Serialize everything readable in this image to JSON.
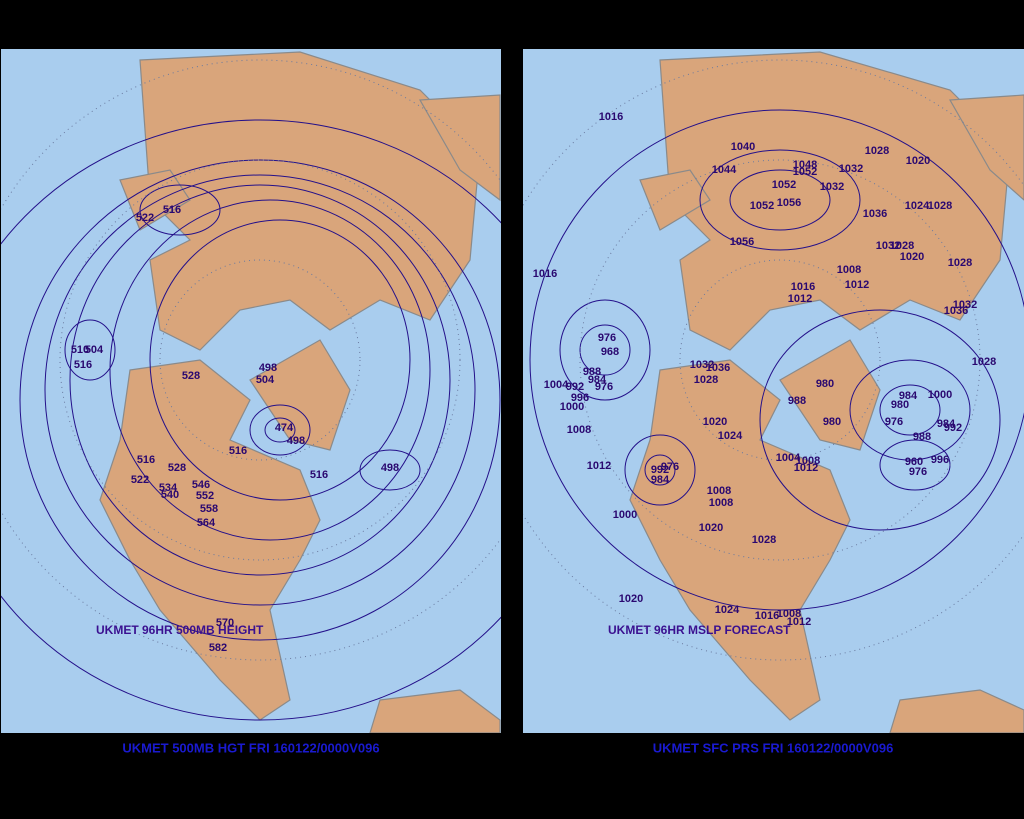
{
  "left_panel": {
    "caption": "UKMET 500MB HGT FRI 160122/0000V096",
    "map_title": "UKMET 96HR 500MB HEIGHT",
    "contour_labels": [
      516,
      522,
      510,
      504,
      516,
      528,
      498,
      504,
      474,
      498,
      516,
      516,
      522,
      528,
      534,
      540,
      546,
      552,
      558,
      564,
      516,
      498,
      570,
      582
    ]
  },
  "right_panel": {
    "caption": "UKMET SFC PRS FRI 160122/0000V096",
    "map_title": "UKMET 96HR MSLP FORECAST",
    "contour_labels": [
      1016,
      1040,
      1048,
      1052,
      1032,
      1028,
      1020,
      1044,
      1052,
      1032,
      1056,
      1052,
      1036,
      1024,
      1028,
      1056,
      1032,
      1028,
      1020,
      1016,
      1008,
      1028,
      1016,
      1012,
      1012,
      1032,
      1036,
      976,
      968,
      1028,
      1032,
      1036,
      1028,
      988,
      984,
      1004,
      992,
      976,
      996,
      1000,
      980,
      988,
      1000,
      984,
      980,
      976,
      980,
      1020,
      1024,
      1008,
      988,
      984,
      992,
      1012,
      1004,
      1008,
      1012,
      976,
      992,
      984,
      960,
      976,
      996,
      1008,
      1008,
      1000,
      1020,
      1028,
      1020,
      1024,
      1016,
      1008,
      1012
    ]
  }
}
